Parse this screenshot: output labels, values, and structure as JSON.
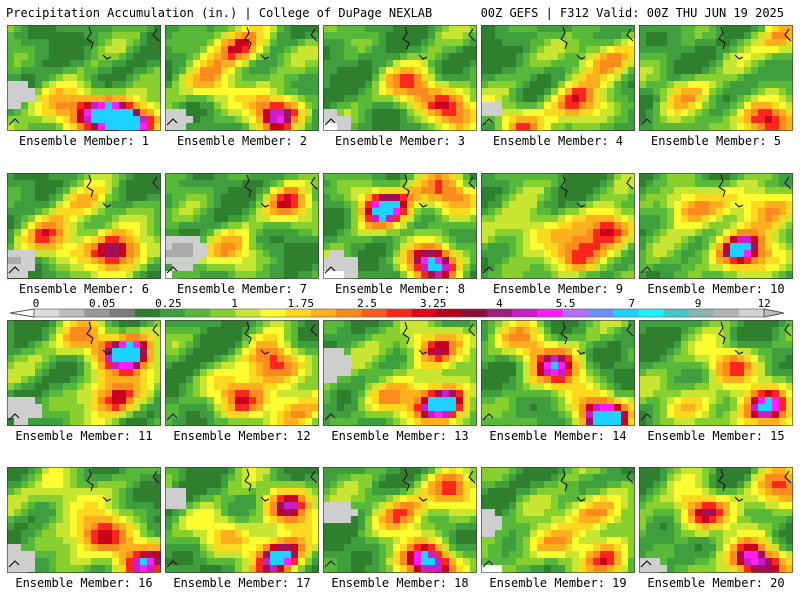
{
  "header": {
    "left": "Precipitation Accumulation (in.) | College of DuPage NEXLAB",
    "right": "00Z GEFS | F312 Valid: 00Z THU JUN 19 2025"
  },
  "legend": {
    "units": "in.",
    "tick_labels": [
      "0",
      "0.05",
      "0.25",
      "1",
      "1.75",
      "2.5",
      "3.25",
      "4",
      "5.5",
      "7",
      "9",
      "12"
    ],
    "colors": [
      "#dcdcdc",
      "#bdbdbd",
      "#9a9a9a",
      "#7c7c7c",
      "#2f7f2f",
      "#3f9f3f",
      "#58b83a",
      "#88d030",
      "#c8e632",
      "#fffe30",
      "#ffd820",
      "#ffb01e",
      "#ff8a1e",
      "#ff5a1e",
      "#ff261e",
      "#e0001e",
      "#b4001e",
      "#8c0e3c",
      "#9b1e7a",
      "#c81ec8",
      "#ff1eff",
      "#b46eff",
      "#6e8cff",
      "#1ed2ff",
      "#1ef0ff",
      "#46c8c8",
      "#8cb4b4",
      "#b4b4b4",
      "#d2d2d2"
    ]
  },
  "panels": [
    {
      "label": "Ensemble Member: 1",
      "wet": [
        [
          0.8,
          0.88,
          1.0
        ],
        [
          0.6,
          0.75,
          0.7
        ],
        [
          0.35,
          0.8,
          0.4
        ]
      ],
      "dry": [
        [
          0.05,
          0.6,
          0.45
        ]
      ],
      "water": []
    },
    {
      "label": "Ensemble Member: 2",
      "wet": [
        [
          0.5,
          0.2,
          0.7
        ],
        [
          0.75,
          0.8,
          0.8
        ],
        [
          0.3,
          0.55,
          0.5
        ]
      ],
      "dry": [
        [
          0.05,
          0.85,
          0.4
        ]
      ],
      "water": []
    },
    {
      "label": "Ensemble Member: 3",
      "wet": [
        [
          0.6,
          0.55,
          0.55
        ],
        [
          0.85,
          0.75,
          0.6
        ]
      ],
      "dry": [
        [
          0.05,
          0.92,
          0.6
        ]
      ],
      "water": [
        [
          0.02,
          0.95
        ]
      ]
    },
    {
      "label": "Ensemble Member: 4",
      "wet": [
        [
          0.8,
          0.3,
          0.6
        ],
        [
          0.6,
          0.7,
          0.6
        ],
        [
          0.25,
          0.9,
          0.5
        ]
      ],
      "dry": [
        [
          0.05,
          0.75,
          0.3
        ]
      ],
      "water": []
    },
    {
      "label": "Ensemble Member: 5",
      "wet": [
        [
          0.8,
          0.85,
          0.8
        ],
        [
          0.95,
          0.15,
          0.5
        ],
        [
          0.3,
          0.6,
          0.4
        ]
      ],
      "dry": [],
      "water": []
    },
    {
      "label": "Ensemble Member: 6",
      "wet": [
        [
          0.7,
          0.7,
          0.85
        ],
        [
          0.3,
          0.6,
          0.5
        ],
        [
          0.5,
          0.3,
          0.4
        ]
      ],
      "dry": [
        [
          0.05,
          0.8,
          0.55
        ]
      ],
      "water": []
    },
    {
      "label": "Ensemble Member: 7",
      "wet": [
        [
          0.8,
          0.3,
          0.5
        ],
        [
          0.4,
          0.7,
          0.4
        ]
      ],
      "dry": [
        [
          0.1,
          0.7,
          0.7
        ]
      ],
      "water": [
        [
          0.02,
          0.97
        ]
      ]
    },
    {
      "label": "Ensemble Member: 8",
      "wet": [
        [
          0.4,
          0.3,
          0.85
        ],
        [
          0.7,
          0.8,
          0.85
        ],
        [
          0.8,
          0.2,
          0.7
        ]
      ],
      "dry": [
        [
          0.1,
          0.85,
          0.5
        ]
      ],
      "water": [
        [
          0.05,
          0.95
        ]
      ]
    },
    {
      "label": "Ensemble Member: 9",
      "wet": [
        [
          0.85,
          0.5,
          0.75
        ],
        [
          0.6,
          0.75,
          0.6
        ],
        [
          0.3,
          0.5,
          0.5
        ]
      ],
      "dry": [],
      "water": []
    },
    {
      "label": "Ensemble Member: 10",
      "wet": [
        [
          0.65,
          0.7,
          1.0
        ],
        [
          0.3,
          0.3,
          0.6
        ],
        [
          0.85,
          0.3,
          0.7
        ]
      ],
      "dry": [],
      "water": []
    },
    {
      "label": "Ensemble Member: 11",
      "wet": [
        [
          0.8,
          0.3,
          0.9
        ],
        [
          0.7,
          0.7,
          0.75
        ],
        [
          0.5,
          0.2,
          0.5
        ]
      ],
      "dry": [
        [
          0.1,
          0.8,
          0.4
        ]
      ],
      "water": []
    },
    {
      "label": "Ensemble Member: 12",
      "wet": [
        [
          0.7,
          0.4,
          0.75
        ],
        [
          0.5,
          0.7,
          0.6
        ],
        [
          0.85,
          0.8,
          0.5
        ]
      ],
      "dry": [],
      "water": []
    },
    {
      "label": "Ensemble Member: 13",
      "wet": [
        [
          0.8,
          0.75,
          1.0
        ],
        [
          0.7,
          0.25,
          0.75
        ],
        [
          0.4,
          0.7,
          0.5
        ]
      ],
      "dry": [
        [
          0.05,
          0.4,
          0.5
        ]
      ],
      "water": []
    },
    {
      "label": "Ensemble Member: 14",
      "wet": [
        [
          0.78,
          0.85,
          1.0
        ],
        [
          0.5,
          0.45,
          0.65
        ],
        [
          0.3,
          0.2,
          0.5
        ]
      ],
      "dry": [],
      "water": []
    },
    {
      "label": "Ensemble Member: 15",
      "wet": [
        [
          0.85,
          0.8,
          0.85
        ],
        [
          0.6,
          0.4,
          0.6
        ],
        [
          0.35,
          0.75,
          0.45
        ]
      ],
      "dry": [],
      "water": []
    },
    {
      "label": "Ensemble Member: 16",
      "wet": [
        [
          0.6,
          0.6,
          0.75
        ],
        [
          0.85,
          0.85,
          0.8
        ],
        [
          0.35,
          0.25,
          0.45
        ]
      ],
      "dry": [
        [
          0.05,
          0.85,
          0.5
        ]
      ],
      "water": []
    },
    {
      "label": "Ensemble Member: 17",
      "wet": [
        [
          0.75,
          0.8,
          0.9
        ],
        [
          0.8,
          0.35,
          0.7
        ],
        [
          0.4,
          0.6,
          0.45
        ]
      ],
      "dry": [
        [
          0.05,
          0.3,
          0.35
        ]
      ],
      "water": []
    },
    {
      "label": "Ensemble Member: 18",
      "wet": [
        [
          0.7,
          0.85,
          1.0
        ],
        [
          0.5,
          0.4,
          0.6
        ],
        [
          0.85,
          0.2,
          0.5
        ]
      ],
      "dry": [
        [
          0.1,
          0.4,
          0.4
        ]
      ],
      "water": []
    },
    {
      "label": "Ensemble Member: 19",
      "wet": [
        [
          0.75,
          0.4,
          0.65
        ],
        [
          0.45,
          0.7,
          0.55
        ],
        [
          0.85,
          0.85,
          0.45
        ]
      ],
      "dry": [
        [
          0.05,
          0.5,
          0.35
        ]
      ],
      "water": [
        [
          0.05,
          0.95
        ]
      ]
    },
    {
      "label": "Ensemble Member: 20",
      "wet": [
        [
          0.75,
          0.85,
          1.0
        ],
        [
          0.4,
          0.4,
          0.75
        ],
        [
          0.9,
          0.2,
          0.6
        ]
      ],
      "dry": [
        [
          0.05,
          0.9,
          0.4
        ]
      ],
      "water": []
    }
  ]
}
